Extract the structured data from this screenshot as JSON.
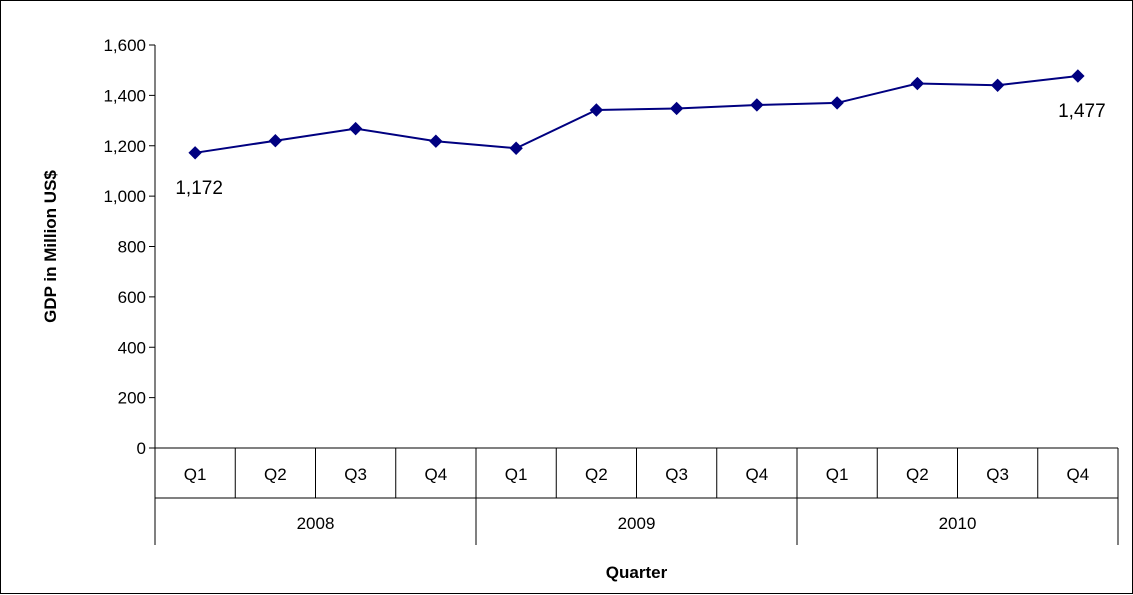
{
  "chart_data": {
    "type": "line",
    "title": "",
    "xlabel": "Quarter",
    "ylabel": "GDP in Million US$",
    "ylim": [
      0,
      1600
    ],
    "yticks": [
      "0",
      "200",
      "400",
      "600",
      "800",
      "1,000",
      "1,200",
      "1,400",
      "1,600"
    ],
    "ytick_values": [
      0,
      200,
      400,
      600,
      800,
      1000,
      1200,
      1400,
      1600
    ],
    "categories": [
      "Q1",
      "Q2",
      "Q3",
      "Q4",
      "Q1",
      "Q2",
      "Q3",
      "Q4",
      "Q1",
      "Q2",
      "Q3",
      "Q4"
    ],
    "groups": [
      {
        "label": "2008",
        "count": 4
      },
      {
        "label": "2009",
        "count": 4
      },
      {
        "label": "2010",
        "count": 4
      }
    ],
    "series": [
      {
        "values": [
          1172,
          1220,
          1268,
          1218,
          1190,
          1342,
          1348,
          1362,
          1370,
          1447,
          1440,
          1477
        ],
        "color": "#000080",
        "marker": "diamond"
      }
    ],
    "data_labels": [
      {
        "index": 0,
        "text": "1,172",
        "placement": "below"
      },
      {
        "index": 11,
        "text": "1,477",
        "placement": "below"
      }
    ],
    "grid": false,
    "legend": "none"
  }
}
